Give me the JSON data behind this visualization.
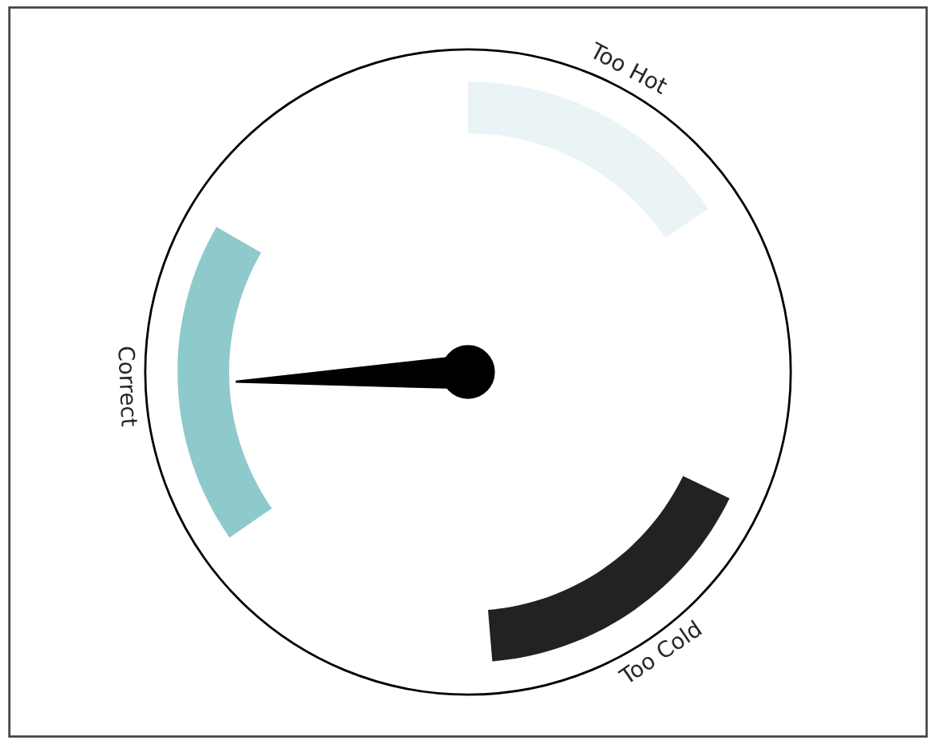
{
  "chart_data": {
    "type": "donut",
    "categories": [
      "Too Hot",
      "Too Cold",
      "Correct"
    ],
    "values": [
      31,
      33,
      36
    ],
    "colors": [
      "#eaf3f5",
      "#222222",
      "#8ecacc"
    ],
    "needle": "Correct"
  }
}
